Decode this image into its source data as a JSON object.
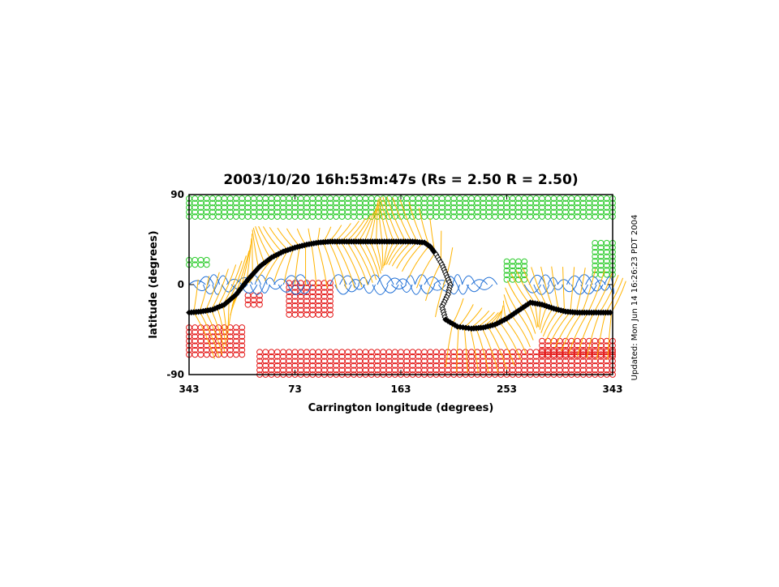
{
  "chart_data": {
    "type": "scatter",
    "title": "2003/10/20 16h:53m:47s (Rs = 2.50 R = 2.50)",
    "xlabel": "Carrington longitude (degrees)",
    "ylabel": "latitude (degrees)",
    "x_ticks": [
      "343",
      "73",
      "163",
      "253",
      "343"
    ],
    "x_tick_positions": [
      0,
      90,
      180,
      270,
      360
    ],
    "y_ticks": [
      "90",
      "0",
      "-90"
    ],
    "y_tick_values": [
      90,
      0,
      -90
    ],
    "xlim": [
      0,
      360
    ],
    "ylim": [
      -90,
      90
    ],
    "annotation": "Updated: Mon Jun 14 16:26:23 PDT 2004",
    "colors": {
      "positive_open_field": "#2ecc2e",
      "negative_open_field": "#e41a1a",
      "closed_field_lines": "#ffb300",
      "low_loops": "#1f6fd6",
      "neutral_line": "#000000"
    },
    "neutral_line": {
      "x": [
        0,
        10,
        20,
        30,
        40,
        50,
        60,
        70,
        80,
        90,
        100,
        110,
        120,
        130,
        140,
        150,
        160,
        170,
        180,
        190,
        200,
        205,
        210,
        215,
        222,
        220,
        215,
        218,
        228,
        240,
        250,
        260,
        270,
        280,
        290,
        300,
        310,
        320,
        330,
        340,
        350,
        360
      ],
      "y": [
        -28,
        -27,
        -25,
        -20,
        -10,
        5,
        18,
        27,
        33,
        37,
        40,
        42,
        43,
        43,
        43,
        43,
        43,
        43,
        43,
        43,
        42,
        38,
        30,
        20,
        0,
        -10,
        -22,
        -35,
        -42,
        -44,
        -43,
        -40,
        -34,
        -26,
        -18,
        -20,
        -24,
        -27,
        -28,
        -28,
        -28,
        -28
      ]
    },
    "positive_open_regions": [
      {
        "lon_min": 0,
        "lon_max": 360,
        "lat_min": 68,
        "lat_max": 90
      },
      {
        "lon_min": 0,
        "lon_max": 15,
        "lat_min": 20,
        "lat_max": 25
      },
      {
        "lon_min": 270,
        "lon_max": 285,
        "lat_min": 5,
        "lat_max": 25
      },
      {
        "lon_min": 345,
        "lon_max": 360,
        "lat_min": 10,
        "lat_max": 45
      }
    ],
    "negative_open_regions": [
      {
        "lon_min": 60,
        "lon_max": 360,
        "lat_min": -90,
        "lat_max": -65
      },
      {
        "lon_min": 300,
        "lon_max": 360,
        "lat_min": -70,
        "lat_max": -55
      },
      {
        "lon_min": 85,
        "lon_max": 120,
        "lat_min": -30,
        "lat_max": 5
      },
      {
        "lon_min": 50,
        "lon_max": 60,
        "lat_min": -20,
        "lat_max": -10
      },
      {
        "lon_min": 0,
        "lon_max": 45,
        "lat_min": -70,
        "lat_max": -40
      }
    ]
  }
}
